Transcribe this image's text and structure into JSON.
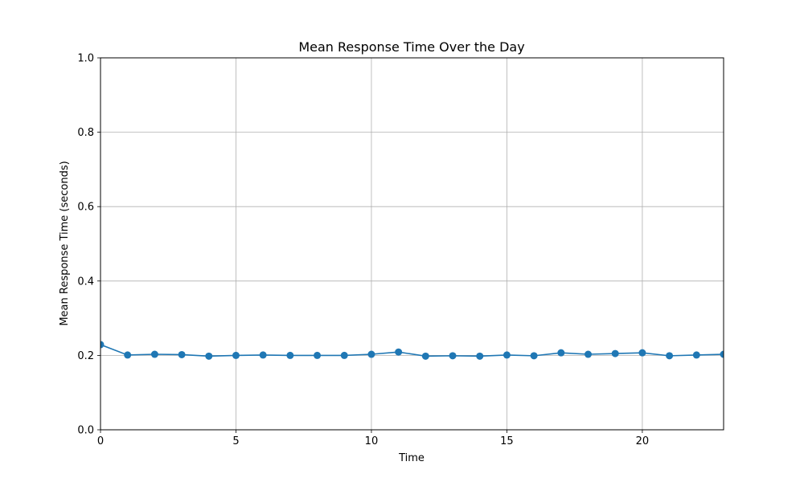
{
  "chart_data": {
    "type": "line",
    "title": "Mean Response Time Over the Day",
    "xlabel": "Time",
    "ylabel": "Mean Response Time (seconds)",
    "xlim": [
      0,
      23
    ],
    "ylim": [
      0.0,
      1.0
    ],
    "xticks": [
      0,
      5,
      10,
      15,
      20
    ],
    "xtick_labels": [
      "0",
      "5",
      "10",
      "15",
      "20"
    ],
    "yticks": [
      0.0,
      0.2,
      0.4,
      0.6,
      0.8,
      1.0
    ],
    "ytick_labels": [
      "0.0",
      "0.2",
      "0.4",
      "0.6",
      "0.8",
      "1.0"
    ],
    "grid": true,
    "marker": "circle",
    "series": [
      {
        "color": "#1f77b4",
        "x": [
          0,
          1,
          2,
          3,
          4,
          5,
          6,
          7,
          8,
          9,
          10,
          11,
          12,
          13,
          14,
          15,
          16,
          17,
          18,
          19,
          20,
          21,
          22,
          23
        ],
        "values": [
          0.229,
          0.201,
          0.203,
          0.202,
          0.198,
          0.2,
          0.201,
          0.2,
          0.2,
          0.2,
          0.203,
          0.209,
          0.198,
          0.199,
          0.198,
          0.201,
          0.199,
          0.207,
          0.203,
          0.205,
          0.207,
          0.199,
          0.201,
          0.203
        ]
      }
    ]
  },
  "colors": {
    "grid": "#b0b0b0",
    "axes": "#000000",
    "background": "#ffffff"
  }
}
